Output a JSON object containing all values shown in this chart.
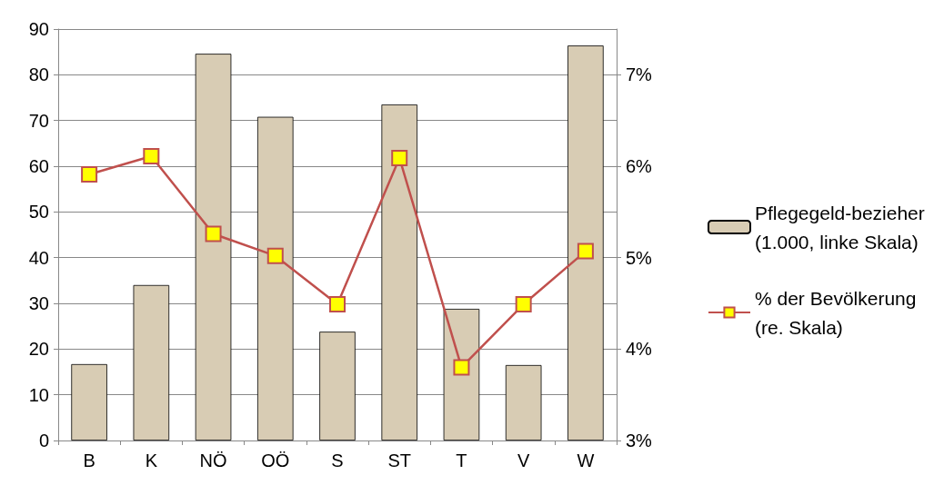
{
  "chart_data": {
    "type": "bar",
    "categories": [
      "B",
      "K",
      "NÖ",
      "OÖ",
      "S",
      "ST",
      "T",
      "V",
      "W"
    ],
    "series": [
      {
        "name": "Pflegegeld-bezieher (1.000, linke Skala)",
        "color": "#d8ccb4",
        "values": [
          16.7,
          34.0,
          84.6,
          70.8,
          23.8,
          73.5,
          28.8,
          16.5,
          86.4
        ]
      },
      {
        "name": "% der Bevölkerung (re. Skala)",
        "type": "line",
        "axis": "y2",
        "color": "#c0504d",
        "marker": "square",
        "values": [
          5.91,
          6.11,
          5.26,
          5.02,
          4.49,
          6.09,
          3.8,
          4.49,
          5.07
        ]
      }
    ],
    "ylim": [
      0,
      90
    ],
    "yticks": [
      0,
      10,
      20,
      30,
      40,
      50,
      60,
      70,
      80,
      90
    ],
    "y2lim": [
      3,
      7.5
    ],
    "y2ticks": [
      {
        "value": 3,
        "label": "3%"
      },
      {
        "value": 4,
        "label": "4%"
      },
      {
        "value": 5,
        "label": "5%"
      },
      {
        "value": 6,
        "label": "6%"
      },
      {
        "value": 7,
        "label": "7%"
      }
    ],
    "grid": "y",
    "legend": "right"
  }
}
